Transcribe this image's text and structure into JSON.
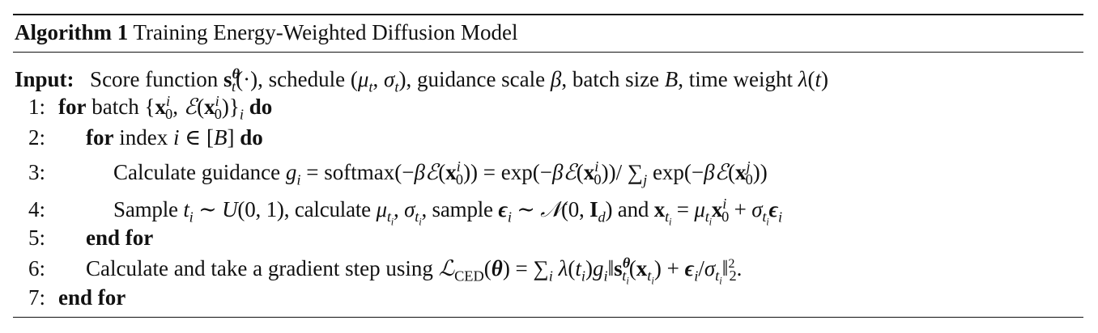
{
  "caption": {
    "label": "Algorithm 1",
    "title": "Training Energy-Weighted Diffusion Model"
  },
  "input": {
    "label": "Input:",
    "text_prefix": "Score function",
    "text_schedule": ", schedule",
    "text_guidance": ", guidance scale",
    "text_batch": ", batch size",
    "text_time": ", time weight"
  },
  "lines": [
    {
      "num": "1:",
      "kw": "for",
      "text": "batch",
      "kw_end": "do"
    },
    {
      "num": "2:",
      "kw": "for",
      "text": "index",
      "kw_end": "do"
    },
    {
      "num": "3:",
      "text": "Calculate guidance"
    },
    {
      "num": "4:",
      "text_a": "Sample",
      "text_b": ", calculate",
      "text_c": ", sample",
      "text_d": "and"
    },
    {
      "num": "5:",
      "kw": "end for"
    },
    {
      "num": "6:",
      "text": "Calculate and take a gradient step using"
    },
    {
      "num": "7:",
      "kw": "end for"
    }
  ]
}
